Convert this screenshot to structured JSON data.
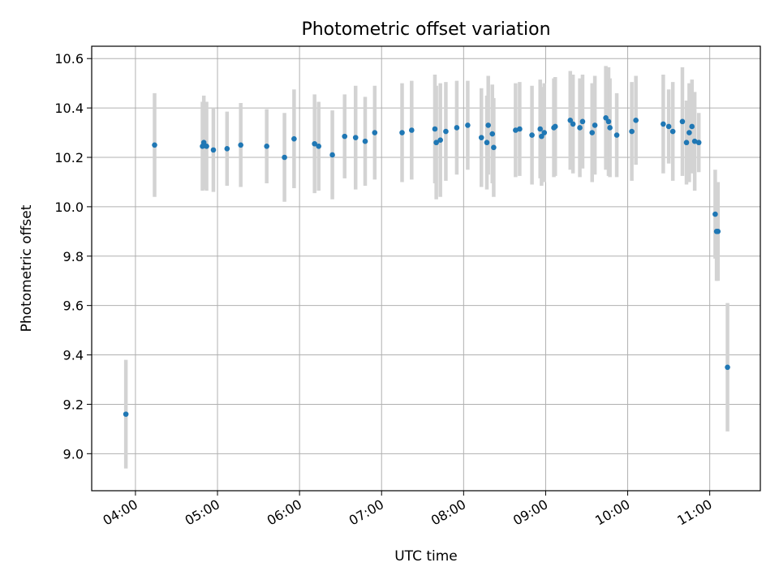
{
  "chart_data": {
    "type": "scatter",
    "title": "Photometric offset variation",
    "xlabel": "UTC time",
    "ylabel": "Photometric offset",
    "xlim": [
      "03:28",
      "11:37"
    ],
    "ylim": [
      8.85,
      10.65
    ],
    "x_ticks": [
      "04:00",
      "05:00",
      "06:00",
      "07:00",
      "08:00",
      "09:00",
      "10:00",
      "11:00"
    ],
    "y_ticks": [
      "9.0",
      "9.2",
      "9.4",
      "9.6",
      "9.8",
      "10.0",
      "10.2",
      "10.4",
      "10.6"
    ],
    "grid": true,
    "marker_color": "#1f77b4",
    "errorbar_color": "#d3d3d3",
    "series": [
      {
        "x": [
          "03:53",
          "04:14",
          "04:49",
          "04:50",
          "04:52",
          "04:57",
          "05:07",
          "05:17",
          "05:36",
          "05:49",
          "05:56",
          "06:11",
          "06:14",
          "06:24",
          "06:33",
          "06:41",
          "06:48",
          "06:55",
          "07:15",
          "07:22",
          "07:39",
          "07:40",
          "07:43",
          "07:47",
          "07:55",
          "08:03",
          "08:13",
          "08:17",
          "08:18",
          "08:21",
          "08:22",
          "08:38",
          "08:41",
          "08:50",
          "08:56",
          "08:57",
          "08:59",
          "09:06",
          "09:07",
          "09:18",
          "09:20",
          "09:25",
          "09:27",
          "09:34",
          "09:36",
          "09:44",
          "09:46",
          "09:47",
          "09:52",
          "10:03",
          "10:06",
          "10:26",
          "10:30",
          "10:33",
          "10:40",
          "10:43",
          "10:45",
          "10:47",
          "10:49",
          "10:52",
          "11:04",
          "11:05",
          "11:06",
          "11:13"
        ],
        "y": [
          9.16,
          10.25,
          10.245,
          10.26,
          10.245,
          10.23,
          10.235,
          10.25,
          10.245,
          10.2,
          10.275,
          10.255,
          10.245,
          10.21,
          10.285,
          10.28,
          10.265,
          10.3,
          10.3,
          10.31,
          10.315,
          10.26,
          10.27,
          10.305,
          10.32,
          10.33,
          10.28,
          10.26,
          10.33,
          10.295,
          10.24,
          10.31,
          10.315,
          10.29,
          10.315,
          10.285,
          10.3,
          10.32,
          10.325,
          10.35,
          10.335,
          10.32,
          10.345,
          10.3,
          10.33,
          10.36,
          10.345,
          10.32,
          10.29,
          10.305,
          10.35,
          10.335,
          10.325,
          10.305,
          10.345,
          10.26,
          10.3,
          10.325,
          10.265,
          10.26,
          9.97,
          9.9,
          9.9,
          9.35
        ],
        "yerr": [
          0.22,
          0.21,
          0.18,
          0.19,
          0.18,
          0.17,
          0.15,
          0.17,
          0.15,
          0.18,
          0.2,
          0.2,
          0.18,
          0.18,
          0.17,
          0.21,
          0.18,
          0.19,
          0.2,
          0.2,
          0.22,
          0.23,
          0.23,
          0.2,
          0.19,
          0.18,
          0.2,
          0.19,
          0.2,
          0.2,
          0.2,
          0.19,
          0.19,
          0.2,
          0.2,
          0.2,
          0.2,
          0.2,
          0.2,
          0.2,
          0.2,
          0.2,
          0.19,
          0.2,
          0.2,
          0.21,
          0.22,
          0.2,
          0.17,
          0.2,
          0.18,
          0.2,
          0.15,
          0.2,
          0.22,
          0.17,
          0.2,
          0.19,
          0.2,
          0.12,
          0.18,
          0.2,
          0.2,
          0.26
        ]
      }
    ]
  }
}
